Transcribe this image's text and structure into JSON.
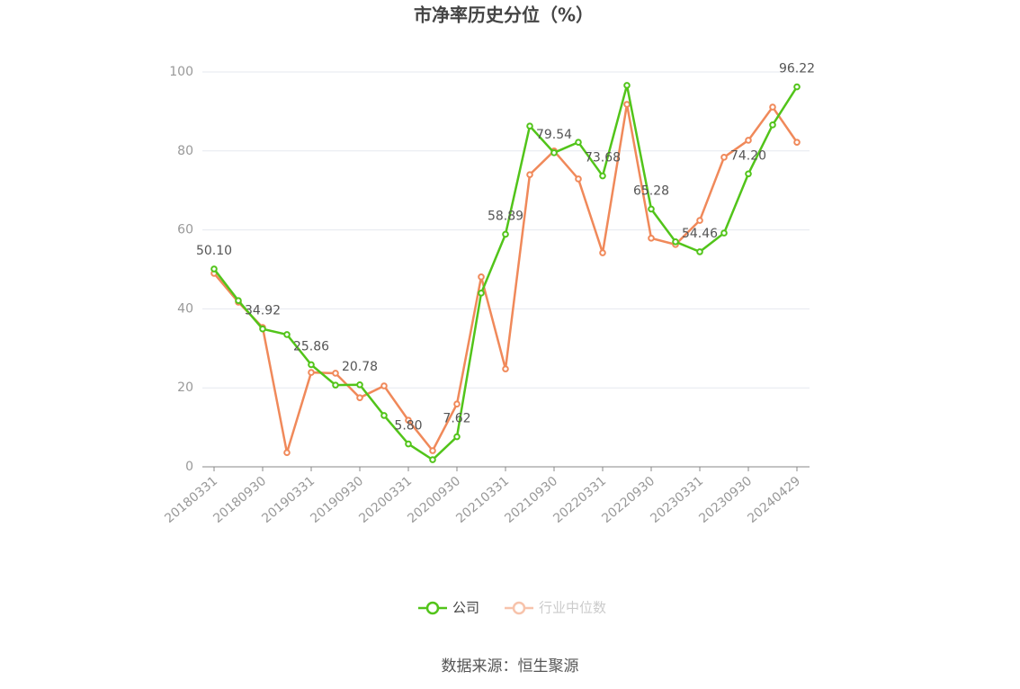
{
  "chart_data": {
    "type": "line",
    "title": "市净率历史分位（%）",
    "categories": [
      "20180331",
      null,
      "20180930",
      null,
      "20190331",
      null,
      "20190930",
      null,
      "20200331",
      null,
      "20200930",
      null,
      "20210331",
      null,
      "20210930",
      null,
      "20220331",
      null,
      "20220930",
      null,
      "20230331",
      null,
      "20230930",
      null,
      "20240429"
    ],
    "series": [
      {
        "name": "公司",
        "color": "#52c41a",
        "values": [
          50.1,
          42.1,
          34.92,
          33.5,
          25.86,
          20.7,
          20.78,
          13.0,
          5.8,
          1.8,
          7.62,
          44.0,
          58.89,
          86.3,
          79.54,
          82.2,
          73.68,
          96.6,
          65.28,
          57.0,
          54.46,
          59.2,
          74.2,
          86.6,
          96.22
        ],
        "value_labels": [
          "50.10",
          null,
          "34.92",
          null,
          "25.86",
          null,
          "20.78",
          null,
          "5.80",
          null,
          "7.62",
          null,
          "58.89",
          null,
          "79.54",
          null,
          "73.68",
          null,
          "65.28",
          null,
          "54.46",
          null,
          "74.20",
          null,
          "96.22"
        ]
      },
      {
        "name": "行业中位数",
        "color": "#f0895a",
        "values": [
          49.0,
          41.7,
          35.3,
          3.6,
          23.9,
          23.7,
          17.5,
          20.5,
          11.8,
          4.1,
          15.9,
          48.1,
          24.8,
          74.0,
          80.0,
          72.9,
          54.2,
          91.8,
          57.9,
          56.3,
          62.4,
          78.4,
          82.7,
          91.1,
          82.2
        ]
      }
    ],
    "ylim": [
      0,
      100
    ],
    "yticks": [
      0,
      20,
      40,
      60,
      80,
      100
    ],
    "grid": true,
    "source": "数据来源：恒生聚源"
  }
}
